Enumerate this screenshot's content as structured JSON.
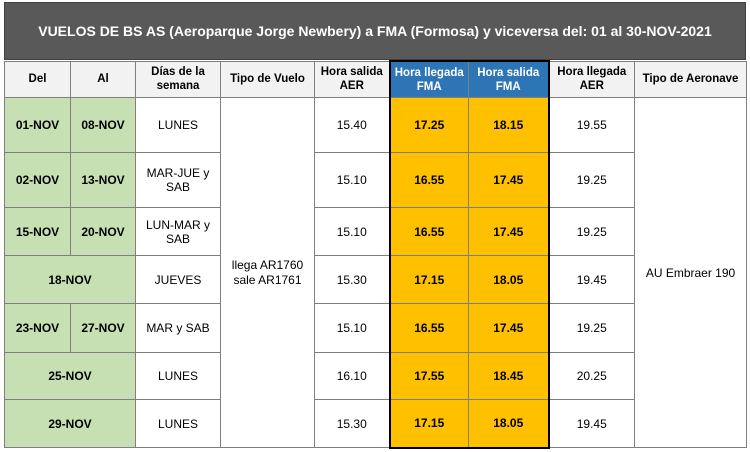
{
  "title": "VUELOS DE BS AS (Aeroparque Jorge Newbery) a FMA (Formosa) y viceversa del: 01 al 30-NOV-2021",
  "table": {
    "headers": [
      "Del",
      "Al",
      "Días de la semana",
      "Tipo de Vuelo",
      "Hora salida AER",
      "Hora llegada FMA",
      "Hora salida FMA",
      "Hora llegada AER",
      "Tipo de Aeronave"
    ],
    "flight_type": [
      "llega AR1760",
      "sale AR1761"
    ],
    "aircraft": "AU Embraer 190",
    "rows": [
      {
        "del": "01-NOV",
        "al": "08-NOV",
        "dias": "LUNES",
        "salida_aer": "15.40",
        "llegada_fma": "17.25",
        "salida_fma": "18.15",
        "llegada_aer": "19.55"
      },
      {
        "del": "02-NOV",
        "al": "13-NOV",
        "dias": "MAR-JUE y SAB",
        "salida_aer": "15.10",
        "llegada_fma": "16.55",
        "salida_fma": "17.45",
        "llegada_aer": "19.25"
      },
      {
        "del": "15-NOV",
        "al": "20-NOV",
        "dias": "LUN-MAR y SAB",
        "salida_aer": "15.10",
        "llegada_fma": "16.55",
        "salida_fma": "17.45",
        "llegada_aer": "19.25"
      },
      {
        "fecha": "18-NOV",
        "dias": "JUEVES",
        "salida_aer": "15.30",
        "llegada_fma": "17.15",
        "salida_fma": "18.05",
        "llegada_aer": "19.45"
      },
      {
        "del": "23-NOV",
        "al": "27-NOV",
        "dias": "MAR y SAB",
        "salida_aer": "15.10",
        "llegada_fma": "16.55",
        "salida_fma": "17.45",
        "llegada_aer": "19.25"
      },
      {
        "fecha": "25-NOV",
        "dias": "LUNES",
        "salida_aer": "16.10",
        "llegada_fma": "17.55",
        "salida_fma": "18.45",
        "llegada_aer": "20.25"
      },
      {
        "fecha": "29-NOV",
        "dias": "LUNES",
        "salida_aer": "15.30",
        "llegada_fma": "17.15",
        "salida_fma": "18.05",
        "llegada_aer": "19.45"
      }
    ]
  }
}
